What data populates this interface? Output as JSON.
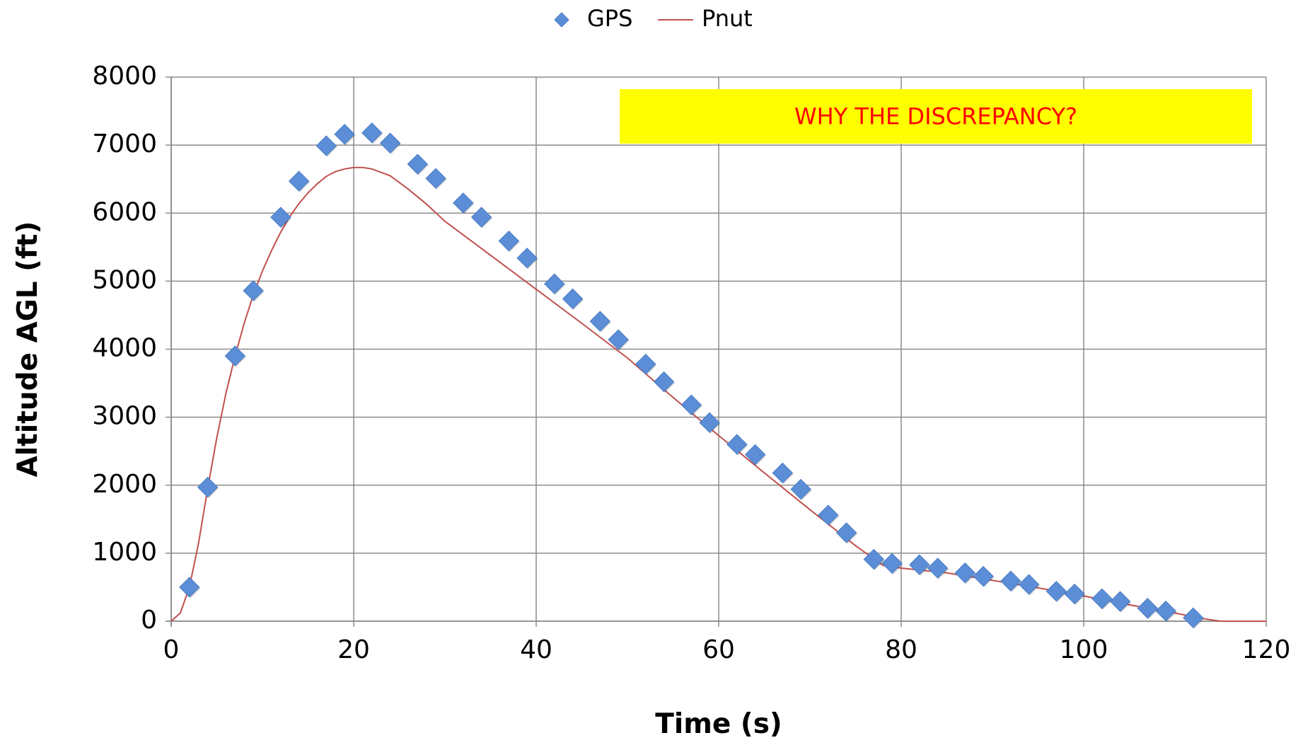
{
  "chart_data": {
    "type": "scatter",
    "title": "",
    "xlabel": "Time (s)",
    "ylabel": "Altitude AGL (ft)",
    "xlim": [
      0,
      120
    ],
    "ylim": [
      0,
      8000
    ],
    "xticks": [
      0,
      20,
      40,
      60,
      80,
      100,
      120
    ],
    "yticks": [
      0,
      1000,
      2000,
      3000,
      4000,
      5000,
      6000,
      7000,
      8000
    ],
    "grid": true,
    "legend_position": "top-center",
    "annotation": {
      "text": "WHY THE DISCREPANCY?",
      "background": "#ffff00",
      "color": "#ff0000"
    },
    "series": [
      {
        "name": "GPS",
        "type": "scatter",
        "marker": "diamond",
        "color": "#5b8ed6",
        "x": [
          2,
          4,
          7,
          9,
          12,
          14,
          17,
          19,
          22,
          24,
          27,
          29,
          32,
          34,
          37,
          39,
          42,
          44,
          47,
          49,
          52,
          54,
          57,
          59,
          62,
          64,
          67,
          69,
          72,
          74,
          77,
          79,
          82,
          84,
          87,
          89,
          92,
          94,
          97,
          99,
          102,
          104,
          107,
          109,
          112
        ],
        "y": [
          500,
          1970,
          3900,
          4860,
          5940,
          6470,
          6990,
          7160,
          7180,
          7030,
          6720,
          6510,
          6150,
          5940,
          5590,
          5340,
          4960,
          4740,
          4410,
          4140,
          3780,
          3520,
          3180,
          2920,
          2600,
          2450,
          2180,
          1940,
          1560,
          1300,
          910,
          850,
          830,
          780,
          710,
          660,
          590,
          540,
          440,
          400,
          330,
          290,
          190,
          150,
          50
        ]
      },
      {
        "name": "Pnut",
        "type": "line",
        "color": "#c0504d",
        "x": [
          0,
          1,
          2,
          3,
          4,
          5,
          6,
          7,
          8,
          9,
          10,
          11,
          12,
          13,
          14,
          15,
          16,
          17,
          18,
          19,
          20,
          21,
          22,
          24,
          26,
          28,
          30,
          35,
          40,
          45,
          50,
          55,
          60,
          65,
          70,
          75,
          78,
          80,
          85,
          90,
          95,
          100,
          105,
          110,
          113,
          115,
          120
        ],
        "y": [
          0,
          120,
          500,
          1150,
          1950,
          2700,
          3350,
          3900,
          4380,
          4800,
          5150,
          5450,
          5720,
          5950,
          6140,
          6300,
          6430,
          6540,
          6610,
          6650,
          6670,
          6670,
          6650,
          6550,
          6350,
          6130,
          5880,
          5380,
          4880,
          4380,
          3870,
          3290,
          2730,
          2180,
          1640,
          1110,
          820,
          780,
          710,
          600,
          490,
          370,
          240,
          120,
          40,
          0,
          0
        ]
      }
    ]
  }
}
